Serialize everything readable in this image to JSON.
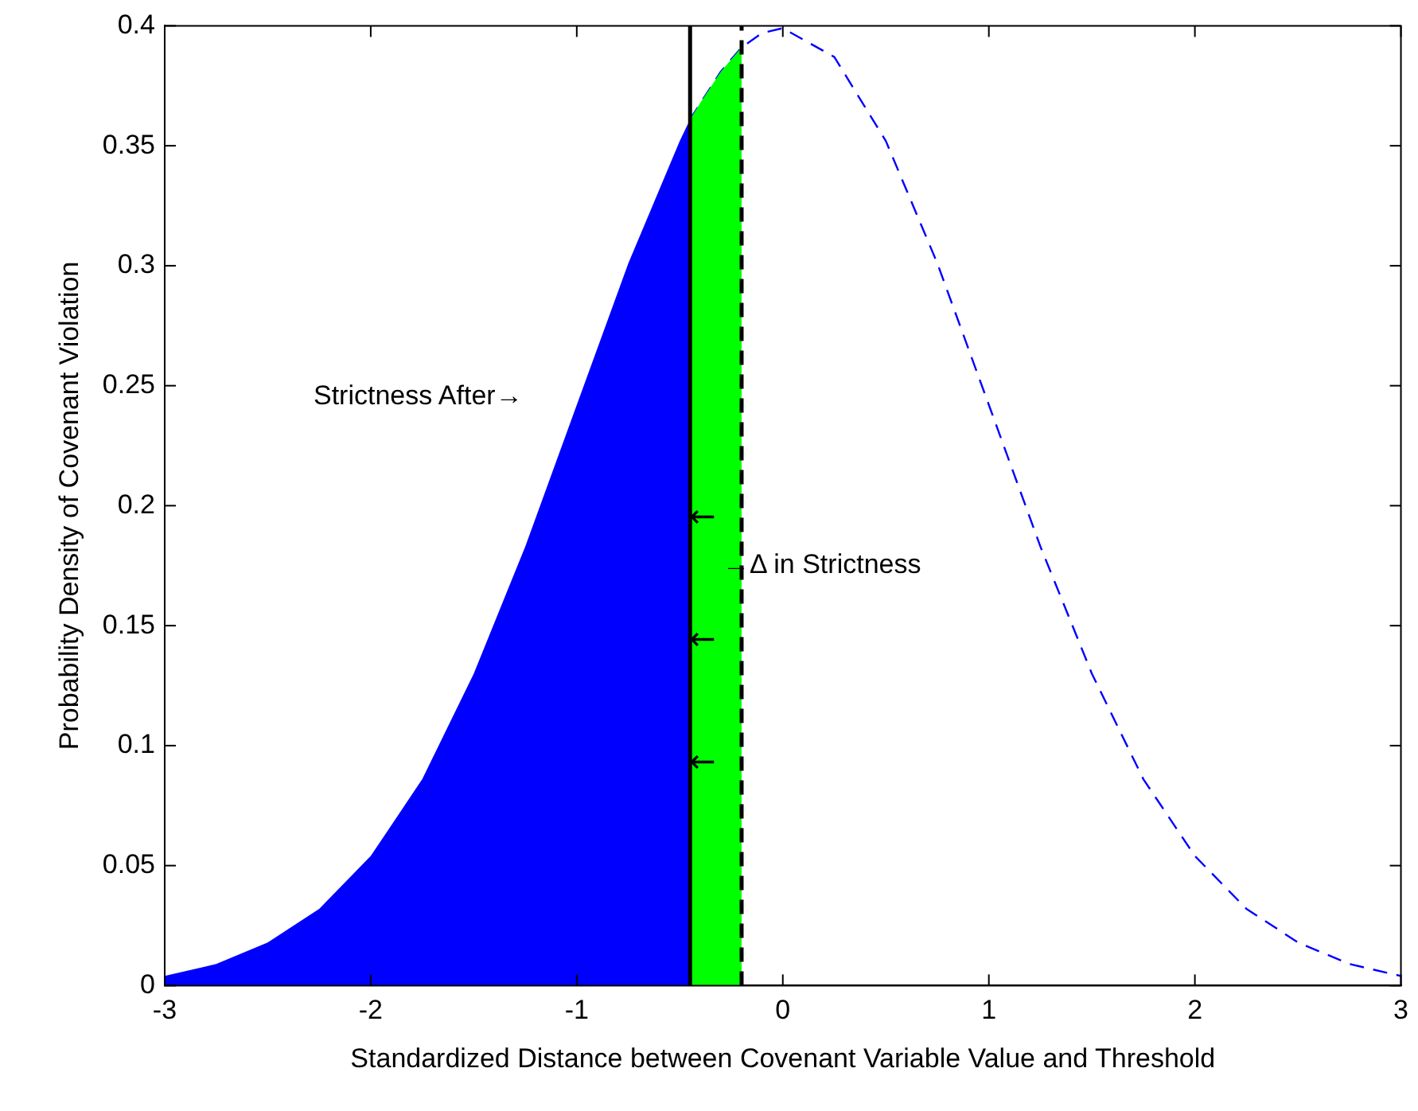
{
  "chart_data": {
    "type": "area",
    "xlabel": "Standardized Distance between Covenant Variable Value and Threshold",
    "ylabel": "Probability Density of Covenant Violation",
    "series": [
      {
        "type": "area",
        "color": "#0000ff",
        "x": [
          -3,
          -2.75,
          -2.5,
          -2.25,
          -2,
          -1.75,
          -1.5,
          -1.25,
          -1,
          -0.75,
          -0.5,
          -0.45
        ],
        "values": [
          0.004,
          0.009,
          0.018,
          0.032,
          0.054,
          0.086,
          0.13,
          0.183,
          0.242,
          0.301,
          0.352,
          0.361
        ]
      },
      {
        "type": "area",
        "color": "#00ff00",
        "x": [
          -0.45,
          -0.4,
          -0.3,
          -0.2
        ],
        "values": [
          0.361,
          0.368,
          0.381,
          0.391
        ]
      },
      {
        "type": "line",
        "color": "#0000ff",
        "line_style": "dashed",
        "x": [
          -0.45,
          -0.3,
          -0.2,
          -0.1,
          0,
          0.25,
          0.5,
          0.75,
          1,
          1.25,
          1.5,
          1.75,
          2,
          2.25,
          2.5,
          2.75,
          3
        ],
        "values": [
          0.361,
          0.381,
          0.391,
          0.397,
          0.399,
          0.387,
          0.352,
          0.301,
          0.242,
          0.183,
          0.13,
          0.086,
          0.054,
          0.032,
          0.018,
          0.009,
          0.004
        ]
      }
    ],
    "xlim": [
      -3,
      3
    ],
    "xticks": [
      -3,
      -2,
      -1,
      0,
      1,
      2,
      3
    ],
    "ylim": [
      0,
      0.4
    ],
    "yticks": [
      0,
      0.05,
      0.1,
      0.15,
      0.2,
      0.25,
      0.3,
      0.35,
      0.4
    ],
    "grid": false,
    "legend": false,
    "ref_lines": [
      {
        "axis": "x",
        "value": -0.45,
        "color": "#000000",
        "line_style": "solid"
      },
      {
        "axis": "x",
        "value": -0.2,
        "color": "#000000",
        "line_style": "dashed"
      }
    ],
    "annotations": [
      "Strictness After→",
      "→Δ in Strictness",
      "←",
      "←",
      "←"
    ]
  }
}
